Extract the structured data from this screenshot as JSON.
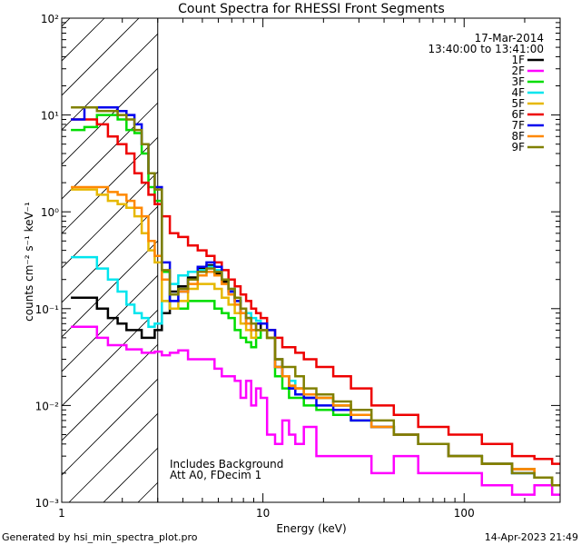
{
  "chart_data": {
    "type": "line",
    "title": "Count Spectra for RHESSI Front Segments",
    "xlabel": "Energy (keV)",
    "ylabel": "counts cm⁻² s⁻¹ keV⁻¹",
    "xscale": "log",
    "yscale": "log",
    "xlim": [
      1,
      300
    ],
    "ylim": [
      0.001,
      100
    ],
    "x_ticks": [
      "1",
      "10",
      "100"
    ],
    "y_ticks": [
      "10⁻³",
      "10⁻²",
      "10⁻¹",
      "10⁰",
      "10¹",
      "10²"
    ],
    "date": "17-Mar-2014",
    "time_range": "13:40:00 to 13:41:00",
    "legend_position": "top-right",
    "excluded_region": {
      "from_keV": 1,
      "to_keV": 3,
      "style": "hatched"
    },
    "annotations": [
      "Includes Background",
      "Att A0, FDecim 1"
    ],
    "footer_left": "Generated by hsi_min_spectra_plot.pro",
    "footer_right": "14-Apr-2023 21:49",
    "energy_keV": [
      1.2,
      1.4,
      1.6,
      1.8,
      2.0,
      2.2,
      2.4,
      2.6,
      2.8,
      3.0,
      3.3,
      3.6,
      4.0,
      4.5,
      5.0,
      5.5,
      6.0,
      6.5,
      7.0,
      7.5,
      8.0,
      8.5,
      9.0,
      9.5,
      10.0,
      11.0,
      12.0,
      13.0,
      14.0,
      15.0,
      17.0,
      20.0,
      25.0,
      30.0,
      40.0,
      50.0,
      70.0,
      100.0,
      150.0,
      200.0,
      250.0,
      300.0
    ],
    "series": [
      {
        "name": "1F",
        "color": "#000000",
        "values": [
          0.13,
          0.13,
          0.1,
          0.08,
          0.07,
          0.06,
          0.06,
          0.05,
          0.05,
          0.06,
          0.09,
          0.15,
          0.17,
          0.21,
          0.26,
          0.28,
          0.23,
          0.19,
          0.15,
          0.12,
          0.09,
          0.08,
          0.07,
          0.07,
          0.06,
          0.05,
          0.03,
          0.02,
          0.015,
          0.015,
          0.012,
          0.012,
          0.01,
          0.008,
          0.006,
          0.005,
          0.004,
          0.003,
          0.0025,
          0.0022,
          0.0018,
          0.0015
        ]
      },
      {
        "name": "2F",
        "color": "#ff00ff",
        "values": [
          0.065,
          0.065,
          0.05,
          0.042,
          0.042,
          0.038,
          0.038,
          0.035,
          0.035,
          0.036,
          0.033,
          0.035,
          0.037,
          0.03,
          0.03,
          0.03,
          0.024,
          0.02,
          0.02,
          0.018,
          0.012,
          0.018,
          0.01,
          0.015,
          0.012,
          0.005,
          0.004,
          0.007,
          0.005,
          0.004,
          0.006,
          0.003,
          0.003,
          0.003,
          0.002,
          0.003,
          0.002,
          0.002,
          0.0015,
          0.0012,
          0.0015,
          0.0012
        ]
      },
      {
        "name": "3F",
        "color": "#00dd00",
        "values": [
          7.0,
          7.5,
          10.0,
          10.0,
          9.0,
          7.0,
          6.5,
          4.0,
          1.8,
          1.3,
          0.24,
          0.1,
          0.1,
          0.12,
          0.12,
          0.12,
          0.1,
          0.09,
          0.08,
          0.06,
          0.05,
          0.045,
          0.04,
          0.05,
          0.06,
          0.05,
          0.02,
          0.015,
          0.012,
          0.012,
          0.01,
          0.009,
          0.008,
          0.007,
          0.006,
          0.005,
          0.004,
          0.003,
          0.0025,
          0.002,
          0.0018,
          0.0015
        ]
      },
      {
        "name": "4F",
        "color": "#00e5ee",
        "values": [
          0.34,
          0.34,
          0.26,
          0.2,
          0.15,
          0.11,
          0.09,
          0.08,
          0.065,
          0.07,
          0.12,
          0.18,
          0.22,
          0.24,
          0.25,
          0.27,
          0.25,
          0.2,
          0.16,
          0.13,
          0.1,
          0.09,
          0.08,
          0.075,
          0.07,
          0.05,
          0.025,
          0.02,
          0.018,
          0.015,
          0.013,
          0.012,
          0.01,
          0.008,
          0.006,
          0.005,
          0.004,
          0.003,
          0.0025,
          0.002,
          0.0018,
          0.0015
        ]
      },
      {
        "name": "5F",
        "color": "#e6b800",
        "values": [
          1.7,
          1.7,
          1.5,
          1.3,
          1.2,
          1.1,
          0.9,
          0.6,
          0.4,
          0.3,
          0.12,
          0.1,
          0.12,
          0.16,
          0.18,
          0.18,
          0.16,
          0.13,
          0.11,
          0.09,
          0.07,
          0.06,
          0.05,
          0.06,
          0.06,
          0.05,
          0.025,
          0.02,
          0.016,
          0.015,
          0.013,
          0.012,
          0.01,
          0.008,
          0.006,
          0.005,
          0.004,
          0.003,
          0.0025,
          0.0022,
          0.0018,
          0.0015
        ]
      },
      {
        "name": "6F",
        "color": "#ee0000",
        "values": [
          9.0,
          9.0,
          8.0,
          6.0,
          5.0,
          4.0,
          2.5,
          2.0,
          1.5,
          1.2,
          0.9,
          0.6,
          0.55,
          0.45,
          0.4,
          0.35,
          0.3,
          0.25,
          0.2,
          0.17,
          0.14,
          0.12,
          0.1,
          0.09,
          0.08,
          0.06,
          0.05,
          0.04,
          0.04,
          0.035,
          0.03,
          0.025,
          0.02,
          0.015,
          0.01,
          0.008,
          0.006,
          0.005,
          0.004,
          0.003,
          0.0028,
          0.0025
        ]
      },
      {
        "name": "7F",
        "color": "#0000ee",
        "values": [
          9.0,
          12.0,
          12.0,
          12.0,
          11.0,
          10.0,
          8.0,
          5.0,
          2.5,
          1.8,
          0.3,
          0.12,
          0.15,
          0.2,
          0.27,
          0.3,
          0.27,
          0.2,
          0.15,
          0.12,
          0.09,
          0.07,
          0.06,
          0.07,
          0.07,
          0.06,
          0.025,
          0.02,
          0.015,
          0.013,
          0.012,
          0.01,
          0.009,
          0.007,
          0.006,
          0.005,
          0.004,
          0.003,
          0.0025,
          0.002,
          0.0018,
          0.0015
        ]
      },
      {
        "name": "8F",
        "color": "#ff8800",
        "values": [
          1.8,
          1.8,
          1.8,
          1.6,
          1.5,
          1.3,
          1.1,
          0.9,
          0.5,
          0.35,
          0.2,
          0.14,
          0.15,
          0.18,
          0.22,
          0.24,
          0.22,
          0.18,
          0.14,
          0.11,
          0.09,
          0.07,
          0.06,
          0.06,
          0.06,
          0.05,
          0.025,
          0.02,
          0.016,
          0.015,
          0.013,
          0.012,
          0.01,
          0.008,
          0.006,
          0.005,
          0.004,
          0.003,
          0.0025,
          0.0022,
          0.0018,
          0.0015
        ]
      },
      {
        "name": "9F",
        "color": "#808000",
        "values": [
          12.0,
          12.0,
          11.0,
          11.0,
          10.0,
          9.0,
          7.0,
          5.0,
          2.5,
          1.7,
          0.25,
          0.14,
          0.16,
          0.2,
          0.24,
          0.26,
          0.24,
          0.2,
          0.16,
          0.13,
          0.1,
          0.08,
          0.07,
          0.06,
          0.06,
          0.05,
          0.03,
          0.025,
          0.025,
          0.02,
          0.015,
          0.013,
          0.011,
          0.009,
          0.007,
          0.005,
          0.004,
          0.003,
          0.0025,
          0.002,
          0.0018,
          0.0015
        ]
      }
    ]
  }
}
